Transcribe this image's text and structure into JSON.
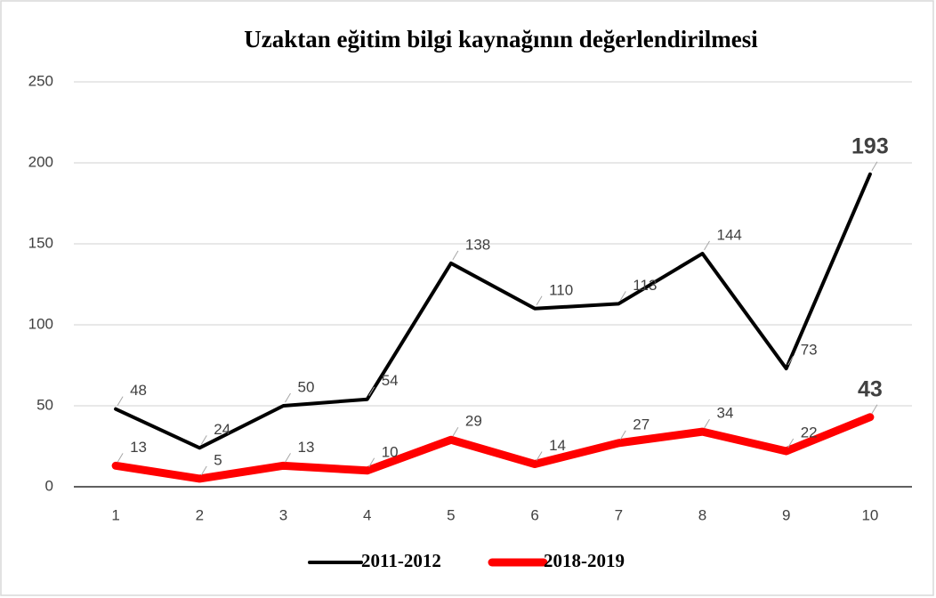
{
  "chart_data": {
    "type": "line",
    "title": "Uzaktan eğitim bilgi kaynağının değerlendirilmesi",
    "categories": [
      "1",
      "2",
      "3",
      "4",
      "5",
      "6",
      "7",
      "8",
      "9",
      "10"
    ],
    "series": [
      {
        "name": "2011-2012",
        "color": "#000000",
        "values": [
          48,
          24,
          50,
          54,
          138,
          110,
          113,
          144,
          73,
          193
        ]
      },
      {
        "name": "2018-2019",
        "color": "#ff0000",
        "values": [
          13,
          5,
          13,
          10,
          29,
          14,
          27,
          34,
          22,
          43
        ]
      }
    ],
    "ylim": [
      0,
      250
    ],
    "yticks": [
      0,
      50,
      100,
      150,
      200,
      250
    ],
    "grid": true,
    "legend": "bottom"
  }
}
